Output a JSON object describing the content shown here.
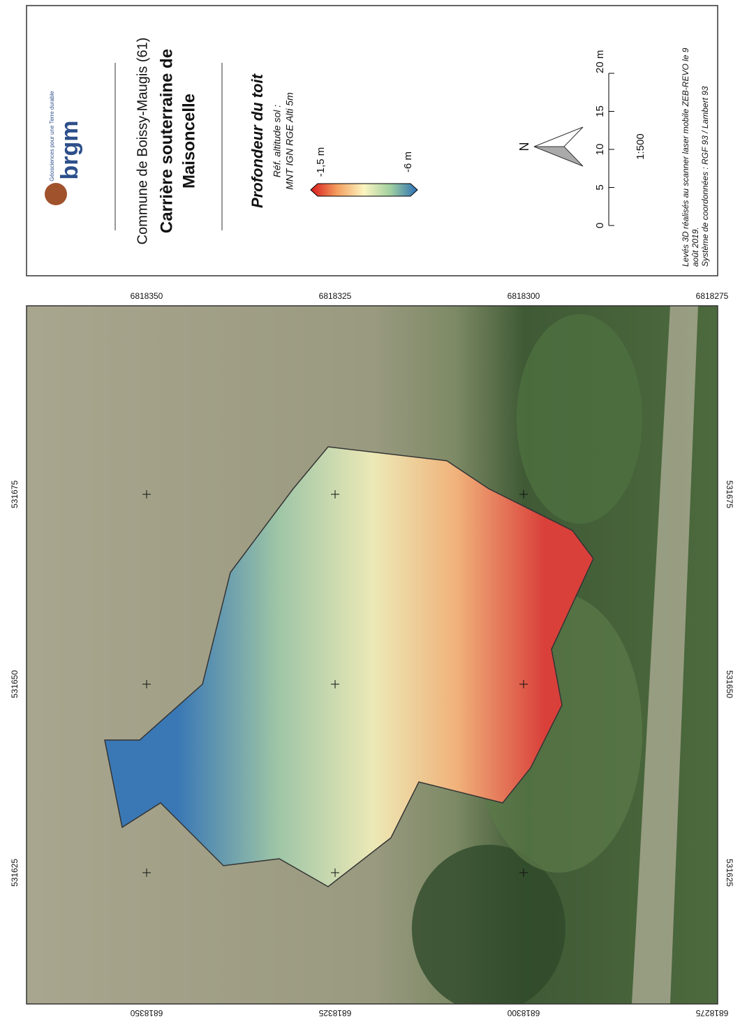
{
  "legend": {
    "logo": "brgm",
    "logo_tagline": "Géosciences pour une Terre durable",
    "commune": "Commune de Boissy-Maugis (61)",
    "title_line1": "Carrière souterraine de",
    "title_line2": "Maisoncelle",
    "depth_title": "Profondeur du toit",
    "reference_line1": "Réf. altitude sol :",
    "reference_line2": "MNT IGN RGE Alti 5m",
    "colorbar_min": "-1,5 m",
    "colorbar_max": "-6 m",
    "north": "N",
    "scale_ticks": [
      "0",
      "5",
      "10",
      "15",
      "20 m"
    ],
    "scale_ratio": "1:500",
    "footer_line1": "Levés 3D réalisés au scanner laser mobile ZEB-REVO le 9",
    "footer_line2": "août 2019.",
    "footer_line3": "Système de coordonnées : RGF 93 / Lambert 93"
  },
  "map": {
    "northing_labels": [
      "6818350",
      "6818325",
      "6818300",
      "6818275"
    ],
    "easting_labels": [
      "531675",
      "531650",
      "531625"
    ]
  }
}
